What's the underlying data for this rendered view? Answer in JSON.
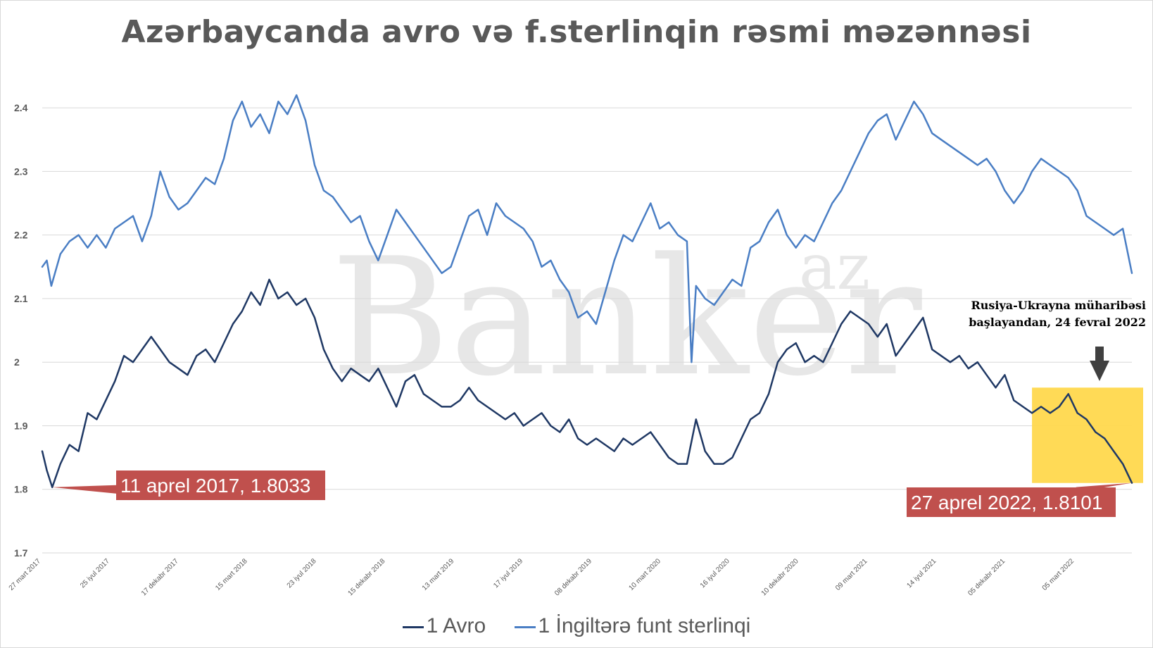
{
  "title": "Azərbaycanda avro və f.sterlinqin rəsmi məzənnəsi",
  "watermark": {
    "main": "Banker",
    "sup": "az"
  },
  "chart_data": {
    "type": "line",
    "ylim": [
      1.7,
      2.45
    ],
    "yticks": [
      "1.7",
      "1.8",
      "1.9",
      "2",
      "2.1",
      "2.2",
      "2.3",
      "2.4"
    ],
    "xticks": [
      "27 mart 2017",
      "25 iyul 2017",
      "17 dekabr 2017",
      "15 mart 2018",
      "23 iyul 2018",
      "15 dekabr 2018",
      "13 mart 2019",
      "17 iyul 2019",
      "08 dekabr 2019",
      "10 mart 2020",
      "16 iyul 2020",
      "10 dekabr 2020",
      "09 mart 2021",
      "14 iyul 2021",
      "05 dekabr 2021",
      "05 mart 2022"
    ],
    "grid": true,
    "legend_position": "bottom",
    "series": [
      {
        "name": "1 Avro",
        "color": "#1f3864",
        "points": [
          [
            0.0,
            1.86
          ],
          [
            0.005,
            1.83
          ],
          [
            0.011,
            1.8033
          ],
          [
            0.02,
            1.84
          ],
          [
            0.03,
            1.87
          ],
          [
            0.04,
            1.86
          ],
          [
            0.05,
            1.92
          ],
          [
            0.06,
            1.91
          ],
          [
            0.07,
            1.94
          ],
          [
            0.08,
            1.97
          ],
          [
            0.09,
            2.01
          ],
          [
            0.1,
            2.0
          ],
          [
            0.11,
            2.02
          ],
          [
            0.12,
            2.04
          ],
          [
            0.13,
            2.02
          ],
          [
            0.14,
            2.0
          ],
          [
            0.15,
            1.99
          ],
          [
            0.16,
            1.98
          ],
          [
            0.17,
            2.01
          ],
          [
            0.18,
            2.02
          ],
          [
            0.19,
            2.0
          ],
          [
            0.2,
            2.03
          ],
          [
            0.21,
            2.06
          ],
          [
            0.22,
            2.08
          ],
          [
            0.23,
            2.11
          ],
          [
            0.24,
            2.09
          ],
          [
            0.25,
            2.13
          ],
          [
            0.26,
            2.1
          ],
          [
            0.27,
            2.11
          ],
          [
            0.28,
            2.09
          ],
          [
            0.29,
            2.1
          ],
          [
            0.3,
            2.07
          ],
          [
            0.31,
            2.02
          ],
          [
            0.32,
            1.99
          ],
          [
            0.33,
            1.97
          ],
          [
            0.34,
            1.99
          ],
          [
            0.35,
            1.98
          ],
          [
            0.36,
            1.97
          ],
          [
            0.37,
            1.99
          ],
          [
            0.38,
            1.96
          ],
          [
            0.39,
            1.93
          ],
          [
            0.4,
            1.97
          ],
          [
            0.41,
            1.98
          ],
          [
            0.42,
            1.95
          ],
          [
            0.43,
            1.94
          ],
          [
            0.44,
            1.93
          ],
          [
            0.45,
            1.93
          ],
          [
            0.46,
            1.94
          ],
          [
            0.47,
            1.96
          ],
          [
            0.48,
            1.94
          ],
          [
            0.49,
            1.93
          ],
          [
            0.5,
            1.92
          ],
          [
            0.51,
            1.91
          ],
          [
            0.52,
            1.92
          ],
          [
            0.53,
            1.9
          ],
          [
            0.54,
            1.91
          ],
          [
            0.55,
            1.92
          ],
          [
            0.56,
            1.9
          ],
          [
            0.57,
            1.89
          ],
          [
            0.58,
            1.91
          ],
          [
            0.59,
            1.88
          ],
          [
            0.6,
            1.87
          ],
          [
            0.61,
            1.88
          ],
          [
            0.62,
            1.87
          ],
          [
            0.63,
            1.86
          ],
          [
            0.64,
            1.88
          ],
          [
            0.65,
            1.87
          ],
          [
            0.66,
            1.88
          ],
          [
            0.67,
            1.89
          ],
          [
            0.68,
            1.87
          ],
          [
            0.69,
            1.85
          ],
          [
            0.7,
            1.84
          ],
          [
            0.71,
            1.84
          ],
          [
            0.72,
            1.91
          ],
          [
            0.73,
            1.86
          ],
          [
            0.74,
            1.84
          ],
          [
            0.75,
            1.84
          ],
          [
            0.76,
            1.85
          ],
          [
            0.77,
            1.88
          ],
          [
            0.78,
            1.91
          ],
          [
            0.79,
            1.92
          ],
          [
            0.8,
            1.95
          ],
          [
            0.81,
            2.0
          ],
          [
            0.82,
            2.02
          ],
          [
            0.83,
            2.03
          ],
          [
            0.84,
            2.0
          ],
          [
            0.85,
            2.01
          ],
          [
            0.86,
            2.0
          ],
          [
            0.87,
            2.03
          ],
          [
            0.88,
            2.06
          ],
          [
            0.89,
            2.08
          ],
          [
            0.9,
            2.07
          ],
          [
            0.91,
            2.06
          ],
          [
            0.92,
            2.04
          ],
          [
            0.93,
            2.06
          ],
          [
            0.94,
            2.01
          ],
          [
            0.95,
            2.03
          ],
          [
            0.96,
            2.05
          ],
          [
            0.97,
            2.07
          ],
          [
            0.98,
            2.02
          ],
          [
            0.99,
            2.01
          ],
          [
            1.0,
            2.0
          ],
          [
            1.01,
            2.01
          ],
          [
            1.02,
            1.99
          ],
          [
            1.03,
            2.0
          ],
          [
            1.04,
            1.98
          ],
          [
            1.05,
            1.96
          ],
          [
            1.06,
            1.98
          ],
          [
            1.07,
            1.94
          ],
          [
            1.08,
            1.93
          ],
          [
            1.09,
            1.92
          ],
          [
            1.1,
            1.93
          ],
          [
            1.11,
            1.92
          ],
          [
            1.12,
            1.93
          ],
          [
            1.13,
            1.95
          ],
          [
            1.14,
            1.92
          ],
          [
            1.15,
            1.91
          ],
          [
            1.16,
            1.89
          ],
          [
            1.17,
            1.88
          ],
          [
            1.18,
            1.86
          ],
          [
            1.19,
            1.84
          ],
          [
            1.2,
            1.8101
          ]
        ]
      },
      {
        "name": "1 İngiltərə funt sterlinqi",
        "color": "#4a7ec4",
        "points": [
          [
            0.0,
            2.15
          ],
          [
            0.005,
            2.16
          ],
          [
            0.01,
            2.12
          ],
          [
            0.02,
            2.17
          ],
          [
            0.03,
            2.19
          ],
          [
            0.04,
            2.2
          ],
          [
            0.05,
            2.18
          ],
          [
            0.06,
            2.2
          ],
          [
            0.07,
            2.18
          ],
          [
            0.08,
            2.21
          ],
          [
            0.09,
            2.22
          ],
          [
            0.1,
            2.23
          ],
          [
            0.11,
            2.19
          ],
          [
            0.12,
            2.23
          ],
          [
            0.13,
            2.3
          ],
          [
            0.14,
            2.26
          ],
          [
            0.15,
            2.24
          ],
          [
            0.16,
            2.25
          ],
          [
            0.17,
            2.27
          ],
          [
            0.18,
            2.29
          ],
          [
            0.19,
            2.28
          ],
          [
            0.2,
            2.32
          ],
          [
            0.21,
            2.38
          ],
          [
            0.22,
            2.41
          ],
          [
            0.23,
            2.37
          ],
          [
            0.24,
            2.39
          ],
          [
            0.25,
            2.36
          ],
          [
            0.26,
            2.41
          ],
          [
            0.27,
            2.39
          ],
          [
            0.28,
            2.42
          ],
          [
            0.29,
            2.38
          ],
          [
            0.3,
            2.31
          ],
          [
            0.31,
            2.27
          ],
          [
            0.32,
            2.26
          ],
          [
            0.33,
            2.24
          ],
          [
            0.34,
            2.22
          ],
          [
            0.35,
            2.23
          ],
          [
            0.36,
            2.19
          ],
          [
            0.37,
            2.16
          ],
          [
            0.38,
            2.2
          ],
          [
            0.39,
            2.24
          ],
          [
            0.4,
            2.22
          ],
          [
            0.41,
            2.2
          ],
          [
            0.42,
            2.18
          ],
          [
            0.43,
            2.16
          ],
          [
            0.44,
            2.14
          ],
          [
            0.45,
            2.15
          ],
          [
            0.46,
            2.19
          ],
          [
            0.47,
            2.23
          ],
          [
            0.48,
            2.24
          ],
          [
            0.49,
            2.2
          ],
          [
            0.5,
            2.25
          ],
          [
            0.51,
            2.23
          ],
          [
            0.52,
            2.22
          ],
          [
            0.53,
            2.21
          ],
          [
            0.54,
            2.19
          ],
          [
            0.55,
            2.15
          ],
          [
            0.56,
            2.16
          ],
          [
            0.57,
            2.13
          ],
          [
            0.58,
            2.11
          ],
          [
            0.59,
            2.07
          ],
          [
            0.6,
            2.08
          ],
          [
            0.61,
            2.06
          ],
          [
            0.62,
            2.11
          ],
          [
            0.63,
            2.16
          ],
          [
            0.64,
            2.2
          ],
          [
            0.65,
            2.19
          ],
          [
            0.66,
            2.22
          ],
          [
            0.67,
            2.25
          ],
          [
            0.68,
            2.21
          ],
          [
            0.69,
            2.22
          ],
          [
            0.7,
            2.2
          ],
          [
            0.71,
            2.19
          ],
          [
            0.715,
            2.0
          ],
          [
            0.72,
            2.12
          ],
          [
            0.73,
            2.1
          ],
          [
            0.74,
            2.09
          ],
          [
            0.75,
            2.11
          ],
          [
            0.76,
            2.13
          ],
          [
            0.77,
            2.12
          ],
          [
            0.78,
            2.18
          ],
          [
            0.79,
            2.19
          ],
          [
            0.8,
            2.22
          ],
          [
            0.81,
            2.24
          ],
          [
            0.82,
            2.2
          ],
          [
            0.83,
            2.18
          ],
          [
            0.84,
            2.2
          ],
          [
            0.85,
            2.19
          ],
          [
            0.86,
            2.22
          ],
          [
            0.87,
            2.25
          ],
          [
            0.88,
            2.27
          ],
          [
            0.89,
            2.3
          ],
          [
            0.9,
            2.33
          ],
          [
            0.91,
            2.36
          ],
          [
            0.92,
            2.38
          ],
          [
            0.93,
            2.39
          ],
          [
            0.94,
            2.35
          ],
          [
            0.95,
            2.38
          ],
          [
            0.96,
            2.41
          ],
          [
            0.97,
            2.39
          ],
          [
            0.98,
            2.36
          ],
          [
            0.99,
            2.35
          ],
          [
            1.0,
            2.34
          ],
          [
            1.01,
            2.33
          ],
          [
            1.02,
            2.32
          ],
          [
            1.03,
            2.31
          ],
          [
            1.04,
            2.32
          ],
          [
            1.05,
            2.3
          ],
          [
            1.06,
            2.27
          ],
          [
            1.07,
            2.25
          ],
          [
            1.08,
            2.27
          ],
          [
            1.09,
            2.3
          ],
          [
            1.1,
            2.32
          ],
          [
            1.11,
            2.31
          ],
          [
            1.12,
            2.3
          ],
          [
            1.13,
            2.29
          ],
          [
            1.14,
            2.27
          ],
          [
            1.15,
            2.23
          ],
          [
            1.16,
            2.22
          ],
          [
            1.17,
            2.21
          ],
          [
            1.18,
            2.2
          ],
          [
            1.19,
            2.21
          ],
          [
            1.2,
            2.14
          ]
        ]
      }
    ],
    "annotations": [
      {
        "text": "11 aprel 2017, 1.8033",
        "x": 0.011,
        "y": 1.8033
      },
      {
        "text": "27 aprel 2022, 1.8101",
        "x": 1.2,
        "y": 1.8101
      },
      {
        "text": "Rusiya-Ukrayna müharibəsi",
        "line2": "başlayandan, 24 fevral 2022",
        "x": 1.1
      }
    ],
    "highlight": {
      "x_from": 1.09,
      "x_to": 1.2,
      "y_from": 1.81,
      "y_to": 1.96,
      "color": "#ffd84d"
    }
  }
}
